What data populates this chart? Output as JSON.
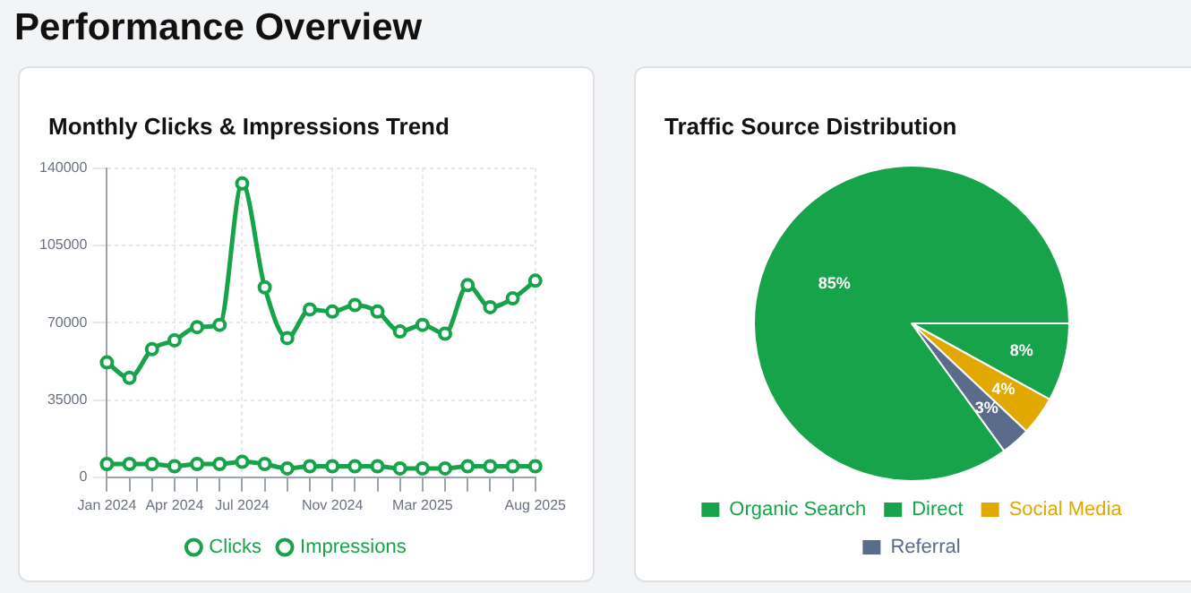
{
  "chart_data": [
    {
      "type": "line",
      "title": "Monthly Clicks & Impressions Trend",
      "annotations": [
        "Performance Overview"
      ],
      "categories": [
        "Jan 2024",
        null,
        null,
        "Apr 2024",
        null,
        null,
        "Jul 2024",
        null,
        null,
        null,
        "Nov 2024",
        null,
        null,
        null,
        "Mar 2025",
        null,
        null,
        null,
        null,
        "Aug 2025"
      ],
      "series": [
        {
          "name": "Clicks",
          "color": "#16a34a",
          "values": [
            6000,
            6000,
            6000,
            5000,
            6000,
            6000,
            7000,
            6000,
            4000,
            5000,
            5000,
            5000,
            5000,
            4000,
            4000,
            4000,
            5000,
            5000,
            5000,
            5000
          ]
        },
        {
          "name": "Impressions",
          "color": "#16a34a",
          "values": [
            52000,
            45000,
            58000,
            62000,
            68000,
            69000,
            133000,
            86000,
            63000,
            76000,
            75000,
            78000,
            75000,
            66000,
            69000,
            65000,
            87000,
            77000,
            81000,
            89000
          ]
        }
      ],
      "ylim": [
        0,
        140000
      ],
      "yticks": [
        0,
        35000,
        70000,
        105000,
        140000
      ],
      "grid": true,
      "legend": "bottom",
      "marker": "circle"
    },
    {
      "type": "pie",
      "title": "Traffic Source Distribution",
      "categories": [
        "Organic Search",
        "Direct",
        "Social Media",
        "Referral"
      ],
      "values": [
        85,
        8,
        4,
        3
      ],
      "colors": [
        "#16a34a",
        "#16a34a",
        "#e0a800",
        "#5b6b8a"
      ],
      "value_labels": [
        "85%",
        "8%",
        "4%",
        "3%"
      ],
      "legend": "bottom"
    }
  ]
}
